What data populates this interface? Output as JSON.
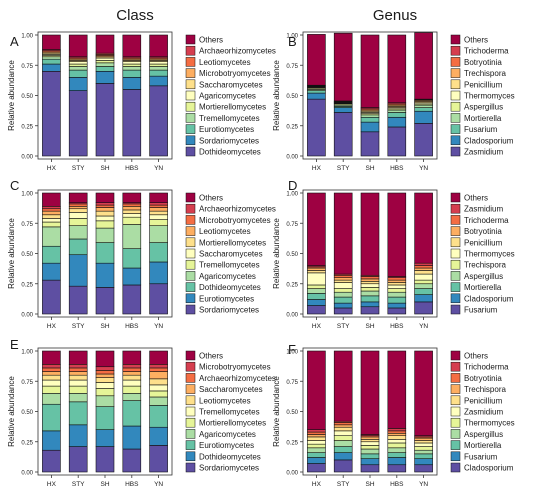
{
  "headers": [
    "Class",
    "Genus"
  ],
  "common": {
    "ylabel": "Relative abundance",
    "yticks": [
      "0.00",
      "0.25",
      "0.50",
      "0.75",
      "1.00"
    ],
    "categories": [
      "HX",
      "STY",
      "SH",
      "HBS",
      "YN"
    ]
  },
  "palette": {
    "dark_red": "#9e0142",
    "red": "#d53e4f",
    "orange": "#f46d43",
    "light_orange": "#fdae61",
    "yellow": "#fee08b",
    "pale_yellow": "#ffffbf",
    "pale_green": "#e6f598",
    "light_green": "#abdda4",
    "teal": "#66c2a5",
    "blue": "#3288bd",
    "indigo": "#5e4fa2"
  },
  "chart_data": [
    {
      "panel": "A",
      "type": "bar",
      "stacked": true,
      "categories": [
        "HX",
        "STY",
        "SH",
        "HBS",
        "YN"
      ],
      "ylim": [
        0,
        1
      ],
      "legend": [
        "Others",
        "Archaeorhizomycetes",
        "Leotiomycetes",
        "Microbotryomycetes",
        "Saccharomycetes",
        "Agaricomycetes",
        "Mortierellomycetes",
        "Tremellomycetes",
        "Eurotiomycetes",
        "Sordariomycetes",
        "Dothideomycetes"
      ],
      "series": [
        {
          "name": "Dothideomycetes",
          "values": [
            0.7,
            0.54,
            0.6,
            0.55,
            0.58
          ]
        },
        {
          "name": "Sordariomycetes",
          "values": [
            0.06,
            0.11,
            0.1,
            0.1,
            0.08
          ]
        },
        {
          "name": "Eurotiomycetes",
          "values": [
            0.04,
            0.06,
            0.04,
            0.06,
            0.05
          ]
        },
        {
          "name": "Tremellomycetes",
          "values": [
            0.02,
            0.03,
            0.03,
            0.03,
            0.03
          ]
        },
        {
          "name": "Mortierellomycetes",
          "values": [
            0.01,
            0.02,
            0.02,
            0.02,
            0.02
          ]
        },
        {
          "name": "Agaricomycetes",
          "values": [
            0.01,
            0.02,
            0.02,
            0.02,
            0.02
          ]
        },
        {
          "name": "Saccharomycetes",
          "values": [
            0.01,
            0.01,
            0.01,
            0.01,
            0.01
          ]
        },
        {
          "name": "Microbotryomycetes",
          "values": [
            0.01,
            0.01,
            0.01,
            0.01,
            0.01
          ]
        },
        {
          "name": "Leotiomycetes",
          "values": [
            0.01,
            0.01,
            0.01,
            0.01,
            0.01
          ]
        },
        {
          "name": "Archaeorhizomycetes",
          "values": [
            0.01,
            0.01,
            0.01,
            0.01,
            0.01
          ]
        },
        {
          "name": "Others",
          "values": [
            0.12,
            0.18,
            0.15,
            0.18,
            0.18
          ]
        }
      ]
    },
    {
      "panel": "B",
      "type": "bar",
      "stacked": true,
      "categories": [
        "HX",
        "STY",
        "SH",
        "HBS",
        "YN"
      ],
      "ylim": [
        0,
        1
      ],
      "legend": [
        "Others",
        "Trichoderma",
        "Botryotinia",
        "Trechispora",
        "Penicillium",
        "Thermomyces",
        "Aspergillus",
        "Mortierella",
        "Fusarium",
        "Cladosporium",
        "Zasmidium"
      ],
      "series": [
        {
          "name": "Zasmidium",
          "values": [
            0.47,
            0.36,
            0.2,
            0.24,
            0.27
          ]
        },
        {
          "name": "Cladosporium",
          "values": [
            0.05,
            0.04,
            0.08,
            0.08,
            0.1
          ]
        },
        {
          "name": "Fusarium",
          "values": [
            0.02,
            0.01,
            0.04,
            0.04,
            0.03
          ]
        },
        {
          "name": "Mortierella",
          "values": [
            0.01,
            0.01,
            0.02,
            0.02,
            0.02
          ]
        },
        {
          "name": "Aspergillus",
          "values": [
            0.01,
            0.01,
            0.01,
            0.01,
            0.01
          ]
        },
        {
          "name": "Thermomyces",
          "values": [
            0.005,
            0.005,
            0.01,
            0.01,
            0.01
          ]
        },
        {
          "name": "Penicillium",
          "values": [
            0.005,
            0.005,
            0.01,
            0.01,
            0.01
          ]
        },
        {
          "name": "Trechispora",
          "values": [
            0.005,
            0.005,
            0.01,
            0.01,
            0.01
          ]
        },
        {
          "name": "Botryotinia",
          "values": [
            0.005,
            0.005,
            0.01,
            0.01,
            0.005
          ]
        },
        {
          "name": "Trichoderma",
          "values": [
            0.005,
            0.005,
            0.01,
            0.01,
            0.005
          ]
        },
        {
          "name": "Others",
          "values": [
            0.42,
            0.56,
            0.6,
            0.56,
            0.55
          ]
        }
      ]
    },
    {
      "panel": "C",
      "type": "bar",
      "stacked": true,
      "categories": [
        "HX",
        "STY",
        "SH",
        "HBS",
        "YN"
      ],
      "ylim": [
        0,
        1
      ],
      "legend": [
        "Others",
        "Archaeorhizomycetes",
        "Microbotryomycetes",
        "Leotiomycetes",
        "Mortierellomycetes",
        "Saccharomycetes",
        "Tremellomycetes",
        "Agaricomycetes",
        "Dothideomycetes",
        "Eurotiomycetes",
        "Sordariomycetes"
      ],
      "series": [
        {
          "name": "Sordariomycetes",
          "values": [
            0.28,
            0.23,
            0.22,
            0.24,
            0.25
          ]
        },
        {
          "name": "Eurotiomycetes",
          "values": [
            0.14,
            0.26,
            0.2,
            0.14,
            0.18
          ]
        },
        {
          "name": "Dothideomycetes",
          "values": [
            0.14,
            0.13,
            0.17,
            0.16,
            0.16
          ]
        },
        {
          "name": "Agaricomycetes",
          "values": [
            0.16,
            0.11,
            0.12,
            0.2,
            0.14
          ]
        },
        {
          "name": "Tremellomycetes",
          "values": [
            0.04,
            0.06,
            0.06,
            0.06,
            0.05
          ]
        },
        {
          "name": "Saccharomycetes",
          "values": [
            0.03,
            0.05,
            0.04,
            0.03,
            0.04
          ]
        },
        {
          "name": "Mortierellomycetes",
          "values": [
            0.03,
            0.03,
            0.04,
            0.03,
            0.03
          ]
        },
        {
          "name": "Leotiomycetes",
          "values": [
            0.03,
            0.02,
            0.03,
            0.03,
            0.03
          ]
        },
        {
          "name": "Microbotryomycetes",
          "values": [
            0.02,
            0.02,
            0.02,
            0.02,
            0.02
          ]
        },
        {
          "name": "Archaeorhizomycetes",
          "values": [
            0.02,
            0.01,
            0.02,
            0.01,
            0.02
          ]
        },
        {
          "name": "Others",
          "values": [
            0.11,
            0.08,
            0.08,
            0.08,
            0.08
          ]
        }
      ]
    },
    {
      "panel": "D",
      "type": "bar",
      "stacked": true,
      "categories": [
        "HX",
        "STY",
        "SH",
        "HBS",
        "YN"
      ],
      "ylim": [
        0,
        1
      ],
      "legend": [
        "Others",
        "Zasmidium",
        "Trichoderma",
        "Botryotinia",
        "Penicillium",
        "Thermomyces",
        "Trechispora",
        "Aspergillus",
        "Mortierella",
        "Cladosporium",
        "Fusarium"
      ],
      "series": [
        {
          "name": "Fusarium",
          "values": [
            0.07,
            0.05,
            0.06,
            0.05,
            0.1
          ]
        },
        {
          "name": "Cladosporium",
          "values": [
            0.05,
            0.04,
            0.04,
            0.04,
            0.06
          ]
        },
        {
          "name": "Mortierella",
          "values": [
            0.05,
            0.05,
            0.05,
            0.05,
            0.05
          ]
        },
        {
          "name": "Aspergillus",
          "values": [
            0.04,
            0.04,
            0.04,
            0.04,
            0.04
          ]
        },
        {
          "name": "Trechispora",
          "values": [
            0.03,
            0.03,
            0.03,
            0.03,
            0.03
          ]
        },
        {
          "name": "Thermomyces",
          "values": [
            0.1,
            0.05,
            0.03,
            0.03,
            0.05
          ]
        },
        {
          "name": "Penicillium",
          "values": [
            0.02,
            0.02,
            0.02,
            0.02,
            0.03
          ]
        },
        {
          "name": "Botryotinia",
          "values": [
            0.02,
            0.02,
            0.02,
            0.02,
            0.02
          ]
        },
        {
          "name": "Trichoderma",
          "values": [
            0.01,
            0.02,
            0.02,
            0.02,
            0.02
          ]
        },
        {
          "name": "Zasmidium",
          "values": [
            0.01,
            0.01,
            0.01,
            0.01,
            0.02
          ]
        },
        {
          "name": "Others",
          "values": [
            0.6,
            0.67,
            0.68,
            0.69,
            0.58
          ]
        }
      ]
    },
    {
      "panel": "E",
      "type": "bar",
      "stacked": true,
      "categories": [
        "HX",
        "STY",
        "SH",
        "HBS",
        "YN"
      ],
      "ylim": [
        0,
        1
      ],
      "legend": [
        "Others",
        "Microbotryomycetes",
        "Archaeorhizomycetes",
        "Saccharomycetes",
        "Leotiomycetes",
        "Tremellomycetes",
        "Mortierellomycetes",
        "Agaricomycetes",
        "Eurotiomycetes",
        "Dothideomycetes",
        "Sordariomycetes"
      ],
      "series": [
        {
          "name": "Sordariomycetes",
          "values": [
            0.18,
            0.21,
            0.21,
            0.19,
            0.22
          ]
        },
        {
          "name": "Dothideomycetes",
          "values": [
            0.16,
            0.18,
            0.14,
            0.19,
            0.15
          ]
        },
        {
          "name": "Eurotiomycetes",
          "values": [
            0.22,
            0.19,
            0.19,
            0.21,
            0.18
          ]
        },
        {
          "name": "Agaricomycetes",
          "values": [
            0.09,
            0.07,
            0.09,
            0.06,
            0.07
          ]
        },
        {
          "name": "Mortierellomycetes",
          "values": [
            0.06,
            0.06,
            0.06,
            0.06,
            0.05
          ]
        },
        {
          "name": "Tremellomycetes",
          "values": [
            0.05,
            0.05,
            0.05,
            0.05,
            0.05
          ]
        },
        {
          "name": "Leotiomycetes",
          "values": [
            0.04,
            0.04,
            0.04,
            0.04,
            0.05
          ]
        },
        {
          "name": "Saccharomycetes",
          "values": [
            0.03,
            0.03,
            0.03,
            0.03,
            0.06
          ]
        },
        {
          "name": "Archaeorhizomycetes",
          "values": [
            0.03,
            0.03,
            0.03,
            0.03,
            0.03
          ]
        },
        {
          "name": "Microbotryomycetes",
          "values": [
            0.03,
            0.03,
            0.03,
            0.03,
            0.03
          ]
        },
        {
          "name": "Others",
          "values": [
            0.11,
            0.11,
            0.13,
            0.11,
            0.11
          ]
        }
      ]
    },
    {
      "panel": "F",
      "type": "bar",
      "stacked": true,
      "categories": [
        "HX",
        "STY",
        "SH",
        "HBS",
        "YN"
      ],
      "ylim": [
        0,
        1
      ],
      "legend": [
        "Others",
        "Trichoderma",
        "Botryotinia",
        "Trechispora",
        "Penicillium",
        "Zasmidium",
        "Thermomyces",
        "Aspergillus",
        "Mortierella",
        "Fusarium",
        "Cladosporium"
      ],
      "series": [
        {
          "name": "Cladosporium",
          "values": [
            0.07,
            0.1,
            0.06,
            0.06,
            0.06
          ]
        },
        {
          "name": "Fusarium",
          "values": [
            0.05,
            0.06,
            0.05,
            0.06,
            0.05
          ]
        },
        {
          "name": "Mortierella",
          "values": [
            0.04,
            0.05,
            0.04,
            0.04,
            0.04
          ]
        },
        {
          "name": "Aspergillus",
          "values": [
            0.04,
            0.05,
            0.04,
            0.04,
            0.03
          ]
        },
        {
          "name": "Thermomyces",
          "values": [
            0.03,
            0.04,
            0.03,
            0.04,
            0.03
          ]
        },
        {
          "name": "Zasmidium",
          "values": [
            0.03,
            0.04,
            0.03,
            0.03,
            0.03
          ]
        },
        {
          "name": "Penicillium",
          "values": [
            0.03,
            0.03,
            0.02,
            0.03,
            0.02
          ]
        },
        {
          "name": "Trechispora",
          "values": [
            0.02,
            0.02,
            0.02,
            0.02,
            0.02
          ]
        },
        {
          "name": "Botryotinia",
          "values": [
            0.02,
            0.02,
            0.01,
            0.02,
            0.01
          ]
        },
        {
          "name": "Trichoderma",
          "values": [
            0.02,
            0.01,
            0.01,
            0.02,
            0.01
          ]
        },
        {
          "name": "Others",
          "values": [
            0.65,
            0.58,
            0.69,
            0.64,
            0.7
          ]
        }
      ]
    }
  ]
}
